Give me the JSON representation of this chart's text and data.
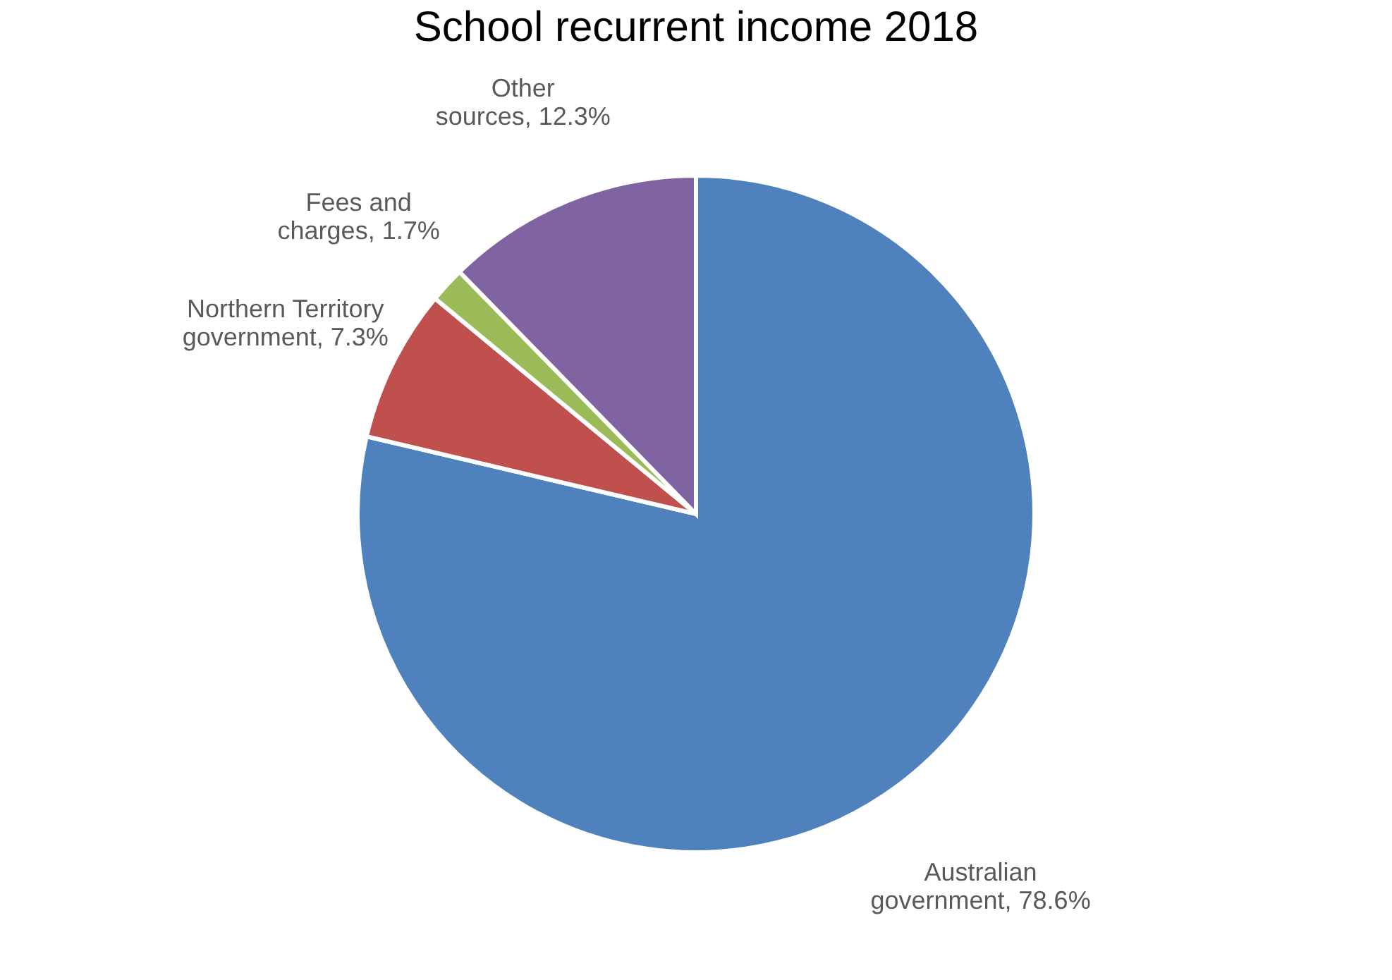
{
  "chart_data": {
    "type": "pie",
    "title": "School recurrent income 2018",
    "categories": [
      "Australian government",
      "Northern Territory government",
      "Fees and charges",
      "Other sources"
    ],
    "values": [
      78.6,
      7.3,
      1.7,
      12.3
    ],
    "value_labels": [
      "78.6%",
      "7.3%",
      "1.7%",
      "12.3%"
    ],
    "colors": [
      "#4f81bd",
      "#c0504d",
      "#9bbb59",
      "#8064a2"
    ],
    "legend": false
  }
}
